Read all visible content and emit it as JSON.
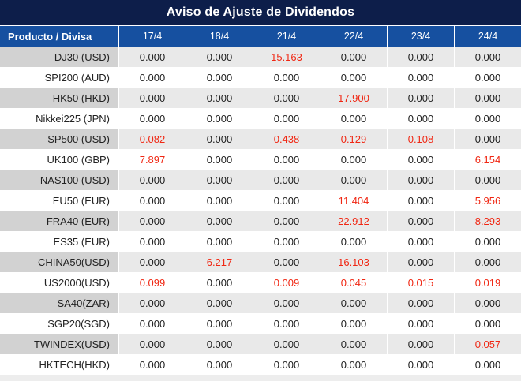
{
  "title": "Aviso de Ajuste de Dividendos",
  "colors": {
    "title_bar_bg": "#0d1e4a",
    "header_bg": "#1650a0",
    "header_text": "#ffffff",
    "row_stripe_label_bg": "#d2d2d2",
    "row_stripe_value_bg": "#e9e9e9",
    "row_white_bg": "#ffffff",
    "value_text": "#222222",
    "nonzero_value_text": "#f02713",
    "gridline": "#ffffff"
  },
  "chart_data": {
    "type": "table",
    "title": "Aviso de Ajuste de Dividendos",
    "columns": [
      "Producto / Divisa",
      "17/4",
      "18/4",
      "21/4",
      "22/4",
      "23/4",
      "24/4"
    ],
    "rows": [
      [
        "DJ30 (USD)",
        "0.000",
        "0.000",
        "15.163",
        "0.000",
        "0.000",
        "0.000"
      ],
      [
        "SPI200 (AUD)",
        "0.000",
        "0.000",
        "0.000",
        "0.000",
        "0.000",
        "0.000"
      ],
      [
        "HK50 (HKD)",
        "0.000",
        "0.000",
        "0.000",
        "17.900",
        "0.000",
        "0.000"
      ],
      [
        "Nikkei225 (JPN)",
        "0.000",
        "0.000",
        "0.000",
        "0.000",
        "0.000",
        "0.000"
      ],
      [
        "SP500 (USD)",
        "0.082",
        "0.000",
        "0.438",
        "0.129",
        "0.108",
        "0.000"
      ],
      [
        "UK100 (GBP)",
        "7.897",
        "0.000",
        "0.000",
        "0.000",
        "0.000",
        "6.154"
      ],
      [
        "NAS100 (USD)",
        "0.000",
        "0.000",
        "0.000",
        "0.000",
        "0.000",
        "0.000"
      ],
      [
        "EU50 (EUR)",
        "0.000",
        "0.000",
        "0.000",
        "11.404",
        "0.000",
        "5.956"
      ],
      [
        "FRA40 (EUR)",
        "0.000",
        "0.000",
        "0.000",
        "22.912",
        "0.000",
        "8.293"
      ],
      [
        "ES35 (EUR)",
        "0.000",
        "0.000",
        "0.000",
        "0.000",
        "0.000",
        "0.000"
      ],
      [
        "CHINA50(USD)",
        "0.000",
        "6.217",
        "0.000",
        "16.103",
        "0.000",
        "0.000"
      ],
      [
        "US2000(USD)",
        "0.099",
        "0.000",
        "0.009",
        "0.045",
        "0.015",
        "0.019"
      ],
      [
        "SA40(ZAR)",
        "0.000",
        "0.000",
        "0.000",
        "0.000",
        "0.000",
        "0.000"
      ],
      [
        "SGP20(SGD)",
        "0.000",
        "0.000",
        "0.000",
        "0.000",
        "0.000",
        "0.000"
      ],
      [
        "TWINDEX(USD)",
        "0.000",
        "0.000",
        "0.000",
        "0.000",
        "0.000",
        "0.057"
      ],
      [
        "HKTECH(HKD)",
        "0.000",
        "0.000",
        "0.000",
        "0.000",
        "0.000",
        "0.000"
      ]
    ],
    "highlight_rule": "non-zero values rendered in red"
  }
}
